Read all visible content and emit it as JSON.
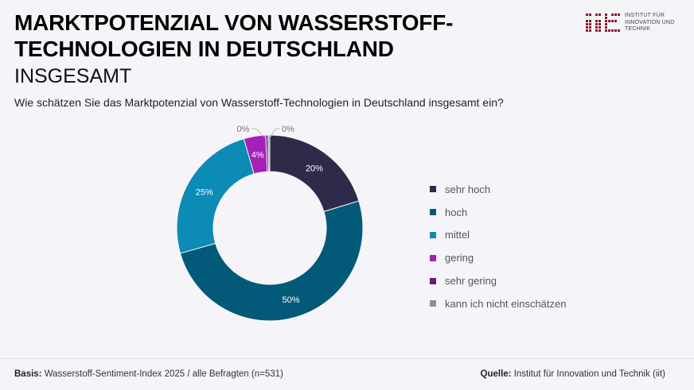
{
  "header": {
    "title_line1": "MARKTPOTENZIAL VON WASSERSTOFF-",
    "title_line2": "TECHNOLOGIEN IN DEUTSCHLAND",
    "subtitle": "INSGESAMT",
    "question": "Wie schätzen Sie das Marktpotenzial von Wasserstoff-Technologien in Deutschland insgesamt ein?"
  },
  "logo": {
    "line1": "INSTITUT FÜR",
    "line2": "INNOVATION UND",
    "line3": "TECHNIK",
    "color": "#8b1a2b"
  },
  "chart_data": {
    "type": "pie",
    "variant": "donut",
    "title": "Wie schätzen Sie das Marktpotenzial von Wasserstoff-Technologien in Deutschland insgesamt ein?",
    "categories": [
      "sehr hoch",
      "hoch",
      "mittel",
      "gering",
      "sehr gering",
      "kann ich nicht einschätzen"
    ],
    "values": [
      20.3,
      50.3,
      24.9,
      3.8,
      0.4,
      0.3
    ],
    "labels": [
      "20%",
      "50%",
      "25%",
      "4%",
      "0%",
      "0%"
    ],
    "colors": [
      "#2e2b4a",
      "#025a78",
      "#0b8bb5",
      "#a51fb8",
      "#6a1b78",
      "#8e8ca4"
    ],
    "legend_position": "right",
    "start": "top",
    "direction": "clockwise"
  },
  "footer": {
    "basis_label": "Basis:",
    "basis_text": " Wasserstoff-Sentiment-Index 2025 / alle Befragten (n=531)",
    "source_label": "Quelle:",
    "source_text": " Institut für Innovation und Technik (iit)"
  }
}
